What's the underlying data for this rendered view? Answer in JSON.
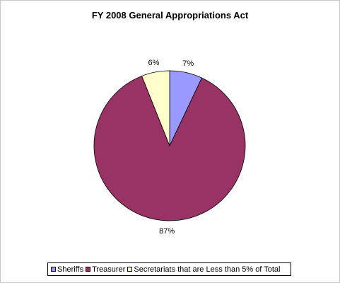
{
  "chart_data": {
    "type": "pie",
    "title": "FY 2008 General Appropriations Act",
    "slices": [
      {
        "name": "Sheriffs",
        "value": 7,
        "label": "7%",
        "color": "#9999ff"
      },
      {
        "name": "Treasurer",
        "value": 87,
        "label": "87%",
        "color": "#993366"
      },
      {
        "name": "Secretariats that are Less than 5% of Total",
        "value": 6,
        "label": "6%",
        "color": "#ffffcc"
      }
    ],
    "legend_position": "bottom"
  }
}
